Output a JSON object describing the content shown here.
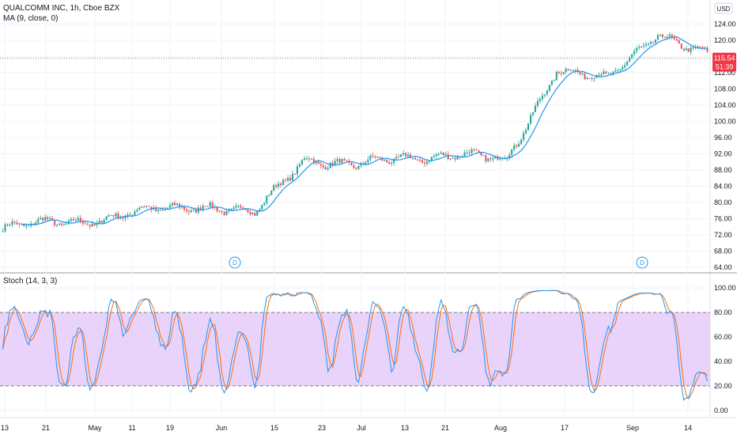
{
  "header": {
    "symbol_line": "QUALCOMM INC, 1h, Cboe BZX",
    "ma_legend": "MA (9, close, 0)",
    "stoch_legend": "Stoch (14, 3, 3)",
    "currency": "USD"
  },
  "price_badge": {
    "price": "115.54",
    "countdown": "51:39",
    "color": "#f23645"
  },
  "dividend_markers": [
    {
      "label": "D",
      "date": "Jun"
    },
    {
      "label": "D",
      "date": "Sep"
    }
  ],
  "colors": {
    "ma": "#2196f3",
    "up": "#26a69a",
    "down": "#ef5350",
    "stoch_k": "#2196f3",
    "stoch_d": "#ff6d00",
    "stoch_band": "#e1c4f8"
  },
  "chart_data": [
    {
      "type": "candlestick",
      "title": "QUALCOMM INC, 1h, Cboe BZX",
      "ylim": [
        64,
        126
      ],
      "y_ticks": [
        "124.00",
        "120.00",
        "116.00",
        "112.00",
        "108.00",
        "104.00",
        "100.00",
        "96.00",
        "92.00",
        "88.00",
        "84.00",
        "80.00",
        "76.00",
        "72.00",
        "68.00",
        "64.00"
      ],
      "last_price": 115.54,
      "grid": true,
      "series": [
        {
          "name": "MA (9, close, 0)",
          "x": [
            "13",
            "21",
            "May",
            "11",
            "19",
            "Jun",
            "15",
            "23",
            "Jul",
            "13",
            "21",
            "Aug",
            "17",
            "Sep",
            "14"
          ],
          "values": [
            73.5,
            75,
            76,
            78,
            79.5,
            77,
            91,
            89,
            91,
            92,
            90,
            113,
            110,
            122,
            116
          ]
        }
      ]
    },
    {
      "type": "line",
      "title": "Stoch (14, 3, 3)",
      "ylim": [
        -4,
        104
      ],
      "y_ticks": [
        "100.00",
        "80.00",
        "60.00",
        "40.00",
        "20.00",
        "0.00"
      ],
      "bands": [
        20,
        80
      ],
      "x_ticks": [
        "13",
        "21",
        "May",
        "11",
        "19",
        "Jun",
        "15",
        "23",
        "Jul",
        "13",
        "21",
        "Aug",
        "17",
        "Sep",
        "14"
      ]
    }
  ]
}
